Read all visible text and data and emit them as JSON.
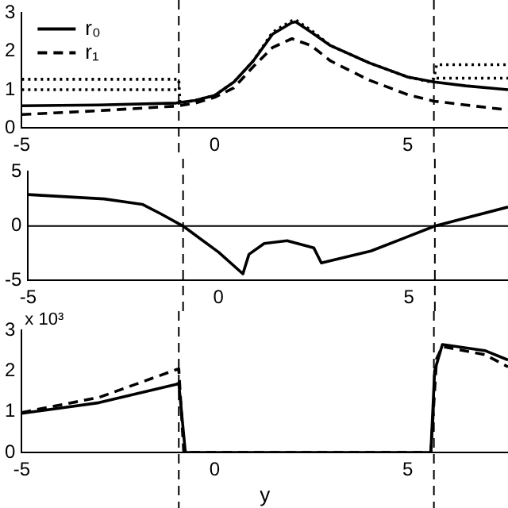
{
  "chart_data": [
    {
      "type": "line",
      "xlim": [
        -5,
        7.6
      ],
      "xticks": [
        -5,
        0,
        5
      ],
      "ylim": [
        0,
        3
      ],
      "yticks": [
        0,
        1,
        2,
        3
      ],
      "legend": "top left",
      "marker": "none",
      "series": [
        {
          "name": "r₀",
          "color": "#000000",
          "line_style": "solid",
          "x": [
            -5,
            -3,
            -1,
            -0.5,
            0,
            0.5,
            1,
            1.5,
            2,
            2.1,
            2.5,
            3,
            4,
            5,
            5.68,
            6.5,
            7.6
          ],
          "values": [
            0.58,
            0.6,
            0.65,
            0.72,
            0.85,
            1.2,
            1.75,
            2.45,
            2.75,
            2.77,
            2.5,
            2.15,
            1.7,
            1.33,
            1.2,
            1.1,
            1.0
          ]
        },
        {
          "name": "r₁",
          "color": "#000000",
          "line_style": "dashed",
          "x": [
            -5,
            -3,
            -1,
            -0.5,
            0,
            0.5,
            1,
            1.5,
            2,
            2.5,
            3,
            4,
            5,
            5.68,
            6.5,
            7.6
          ],
          "values": [
            0.35,
            0.45,
            0.57,
            0.65,
            0.8,
            1.05,
            1.6,
            2.1,
            2.33,
            2.15,
            1.75,
            1.25,
            0.87,
            0.7,
            0.6,
            0.47
          ]
        },
        {
          "color": "#000000",
          "line_style": "dotted",
          "x": [
            -5,
            -0.93,
            -0.9,
            -0.5,
            0,
            0.5,
            1,
            1.5,
            2,
            2.1,
            2.5,
            3,
            4,
            5,
            5.6,
            5.68,
            5.75,
            7.6
          ],
          "values": [
            1.27,
            1.27,
            0.65,
            0.72,
            0.85,
            1.2,
            1.75,
            2.5,
            2.8,
            2.82,
            2.55,
            2.15,
            1.7,
            1.33,
            1.2,
            1.3,
            1.65,
            1.65
          ]
        },
        {
          "color": "#000000",
          "line_style": "dotted",
          "x": [
            -5,
            -0.93,
            -0.92,
            5.7,
            5.75,
            7.6
          ],
          "values": [
            1.0,
            1.0,
            null,
            null,
            1.3,
            1.3
          ]
        }
      ],
      "ref_lines": [
        {
          "axis": "x",
          "value": -0.93,
          "line_style": "dashed"
        },
        {
          "axis": "x",
          "value": 5.68,
          "line_style": "dashed"
        }
      ]
    },
    {
      "type": "line",
      "xlim": [
        -5,
        7.6
      ],
      "xticks": [
        -5,
        0,
        5
      ],
      "ylim": [
        -5,
        5
      ],
      "yticks": [
        -5,
        0,
        5
      ],
      "marker": "none",
      "series": [
        {
          "color": "#000000",
          "line_style": "solid",
          "x": [
            -5,
            -3,
            -2,
            -1.5,
            -0.93,
            0,
            0.64,
            0.8,
            1.2,
            1.8,
            2.5,
            2.7,
            4,
            5.68,
            7.6
          ],
          "values": [
            2.9,
            2.5,
            2.0,
            1.1,
            0,
            -2.4,
            -4.4,
            -2.6,
            -1.6,
            -1.35,
            -2.0,
            -3.4,
            -2.3,
            0,
            1.75
          ]
        }
      ],
      "ref_lines": [
        {
          "axis": "y",
          "value": 0,
          "line_style": "solid"
        },
        {
          "axis": "x",
          "value": -0.93,
          "line_style": "dashed"
        },
        {
          "axis": "x",
          "value": 5.68,
          "line_style": "dashed"
        }
      ]
    },
    {
      "type": "line",
      "xlim": [
        -5,
        7.6
      ],
      "xticks": [
        -5,
        0,
        5
      ],
      "ylim": [
        0,
        3
      ],
      "yticks": [
        0,
        1,
        2,
        3
      ],
      "xlabel": "y",
      "annotations": [
        "x 10³"
      ],
      "marker": "none",
      "series": [
        {
          "color": "#000000",
          "line_style": "solid",
          "x": [
            -5,
            -3,
            -1,
            -0.93,
            -0.76,
            5.6,
            5.7,
            5.9,
            7,
            7.6
          ],
          "values": [
            0.96,
            1.22,
            1.67,
            1.7,
            0,
            0,
            2.0,
            2.65,
            2.5,
            2.27
          ]
        },
        {
          "color": "#000000",
          "line_style": "dashed",
          "x": [
            -5,
            -3,
            -1,
            -0.93,
            -0.8,
            5.6,
            5.75,
            5.9,
            7,
            7.6
          ],
          "values": [
            0.98,
            1.35,
            2.03,
            2.05,
            0,
            0,
            2.3,
            2.6,
            2.4,
            2.1
          ]
        }
      ],
      "ref_lines": [
        {
          "axis": "x",
          "value": -0.93,
          "line_style": "dashed"
        },
        {
          "axis": "x",
          "value": 5.68,
          "line_style": "dashed"
        }
      ]
    }
  ]
}
